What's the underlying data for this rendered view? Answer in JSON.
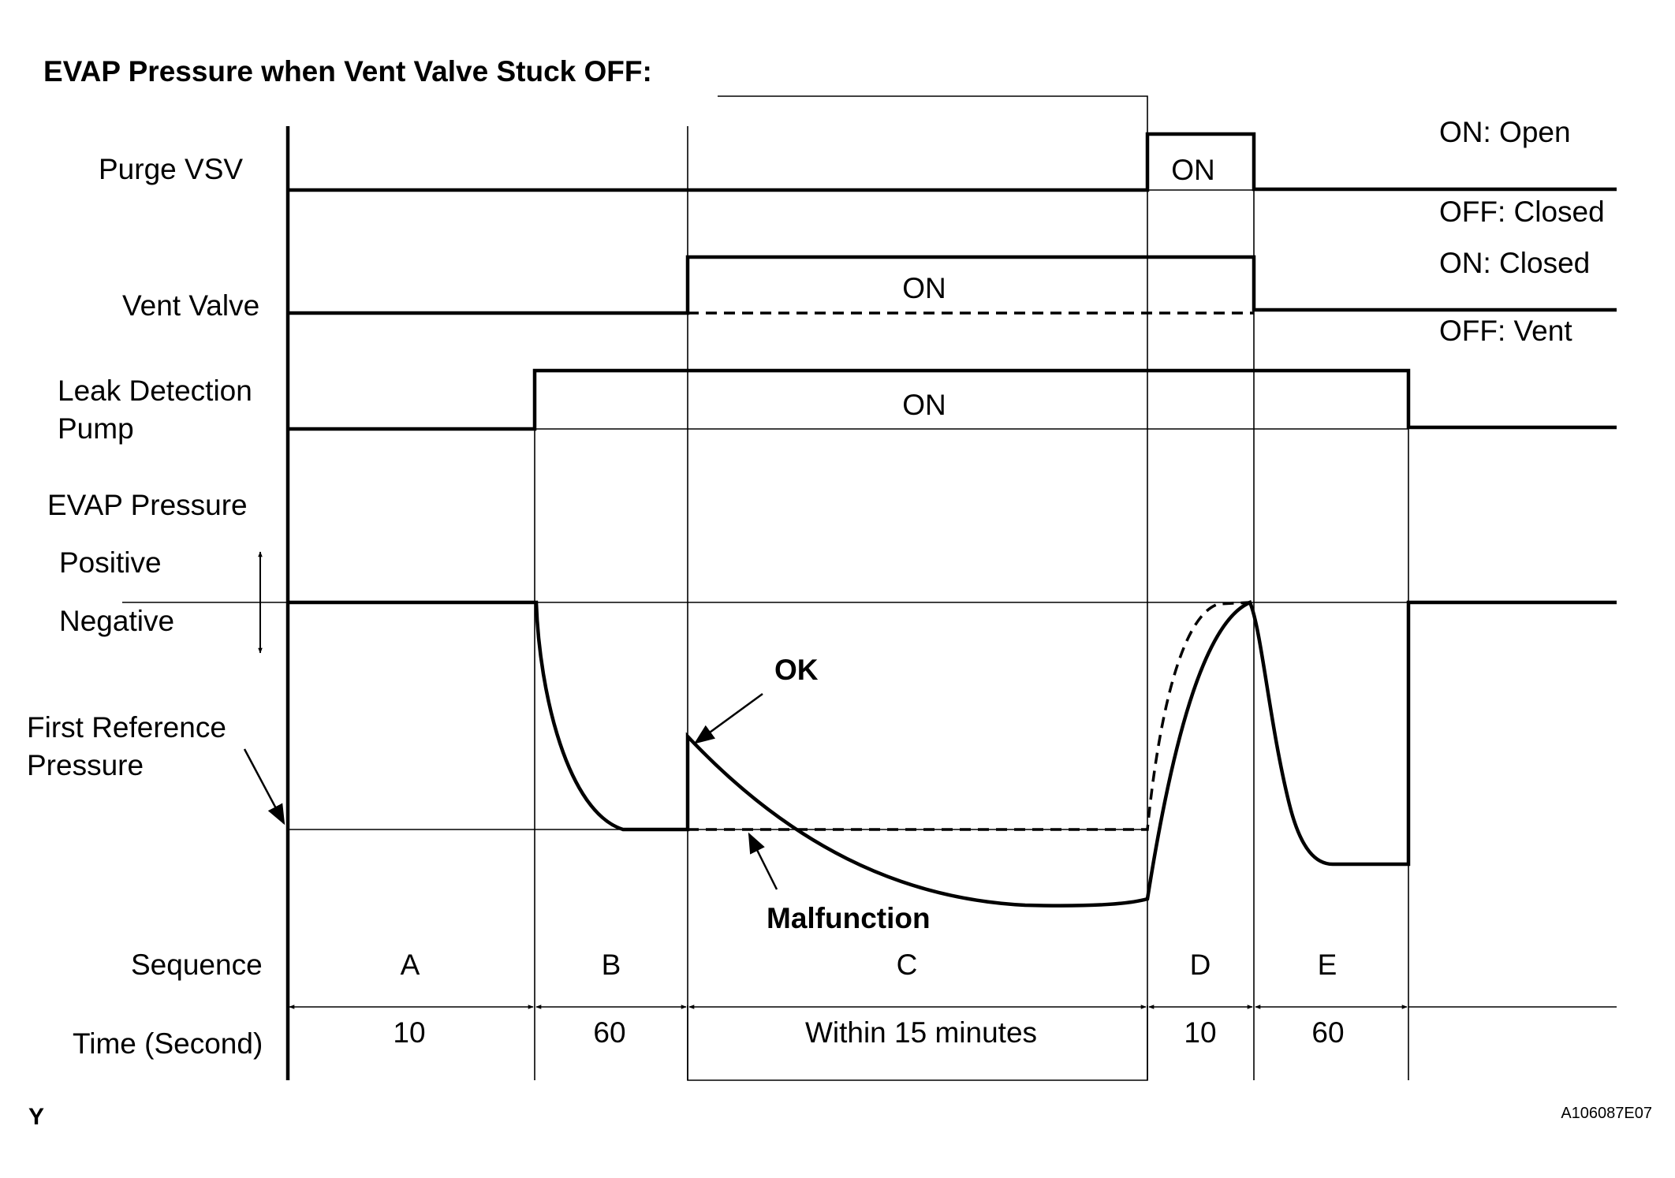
{
  "title": "EVAP Pressure when Vent Valve Stuck OFF:",
  "rows": {
    "purge_vsv": "Purge VSV",
    "vent_valve": "Vent Valve",
    "leak_pump_line1": "Leak Detection",
    "leak_pump_line2": "Pump",
    "evap_pressure": "EVAP Pressure",
    "positive": "Positive",
    "negative": "Negative",
    "first_ref_line1": "First Reference",
    "first_ref_line2": "Pressure",
    "sequence": "Sequence",
    "time": "Time (Second)"
  },
  "state_labels": {
    "purge_on": "ON",
    "vent_on": "ON",
    "pump_on": "ON"
  },
  "legend": {
    "purge_on": "ON: Open",
    "purge_off": "OFF: Closed",
    "vent_on": "ON: Closed",
    "vent_off": "OFF: Vent"
  },
  "annotations": {
    "ok": "OK",
    "malfunction": "Malfunction"
  },
  "sequence": [
    "A",
    "B",
    "C",
    "D",
    "E"
  ],
  "times": [
    "10",
    "60",
    "Within 15 minutes",
    "10",
    "60"
  ],
  "footer": {
    "corner_mark": "Y",
    "figure_code": "A106087E07"
  }
}
